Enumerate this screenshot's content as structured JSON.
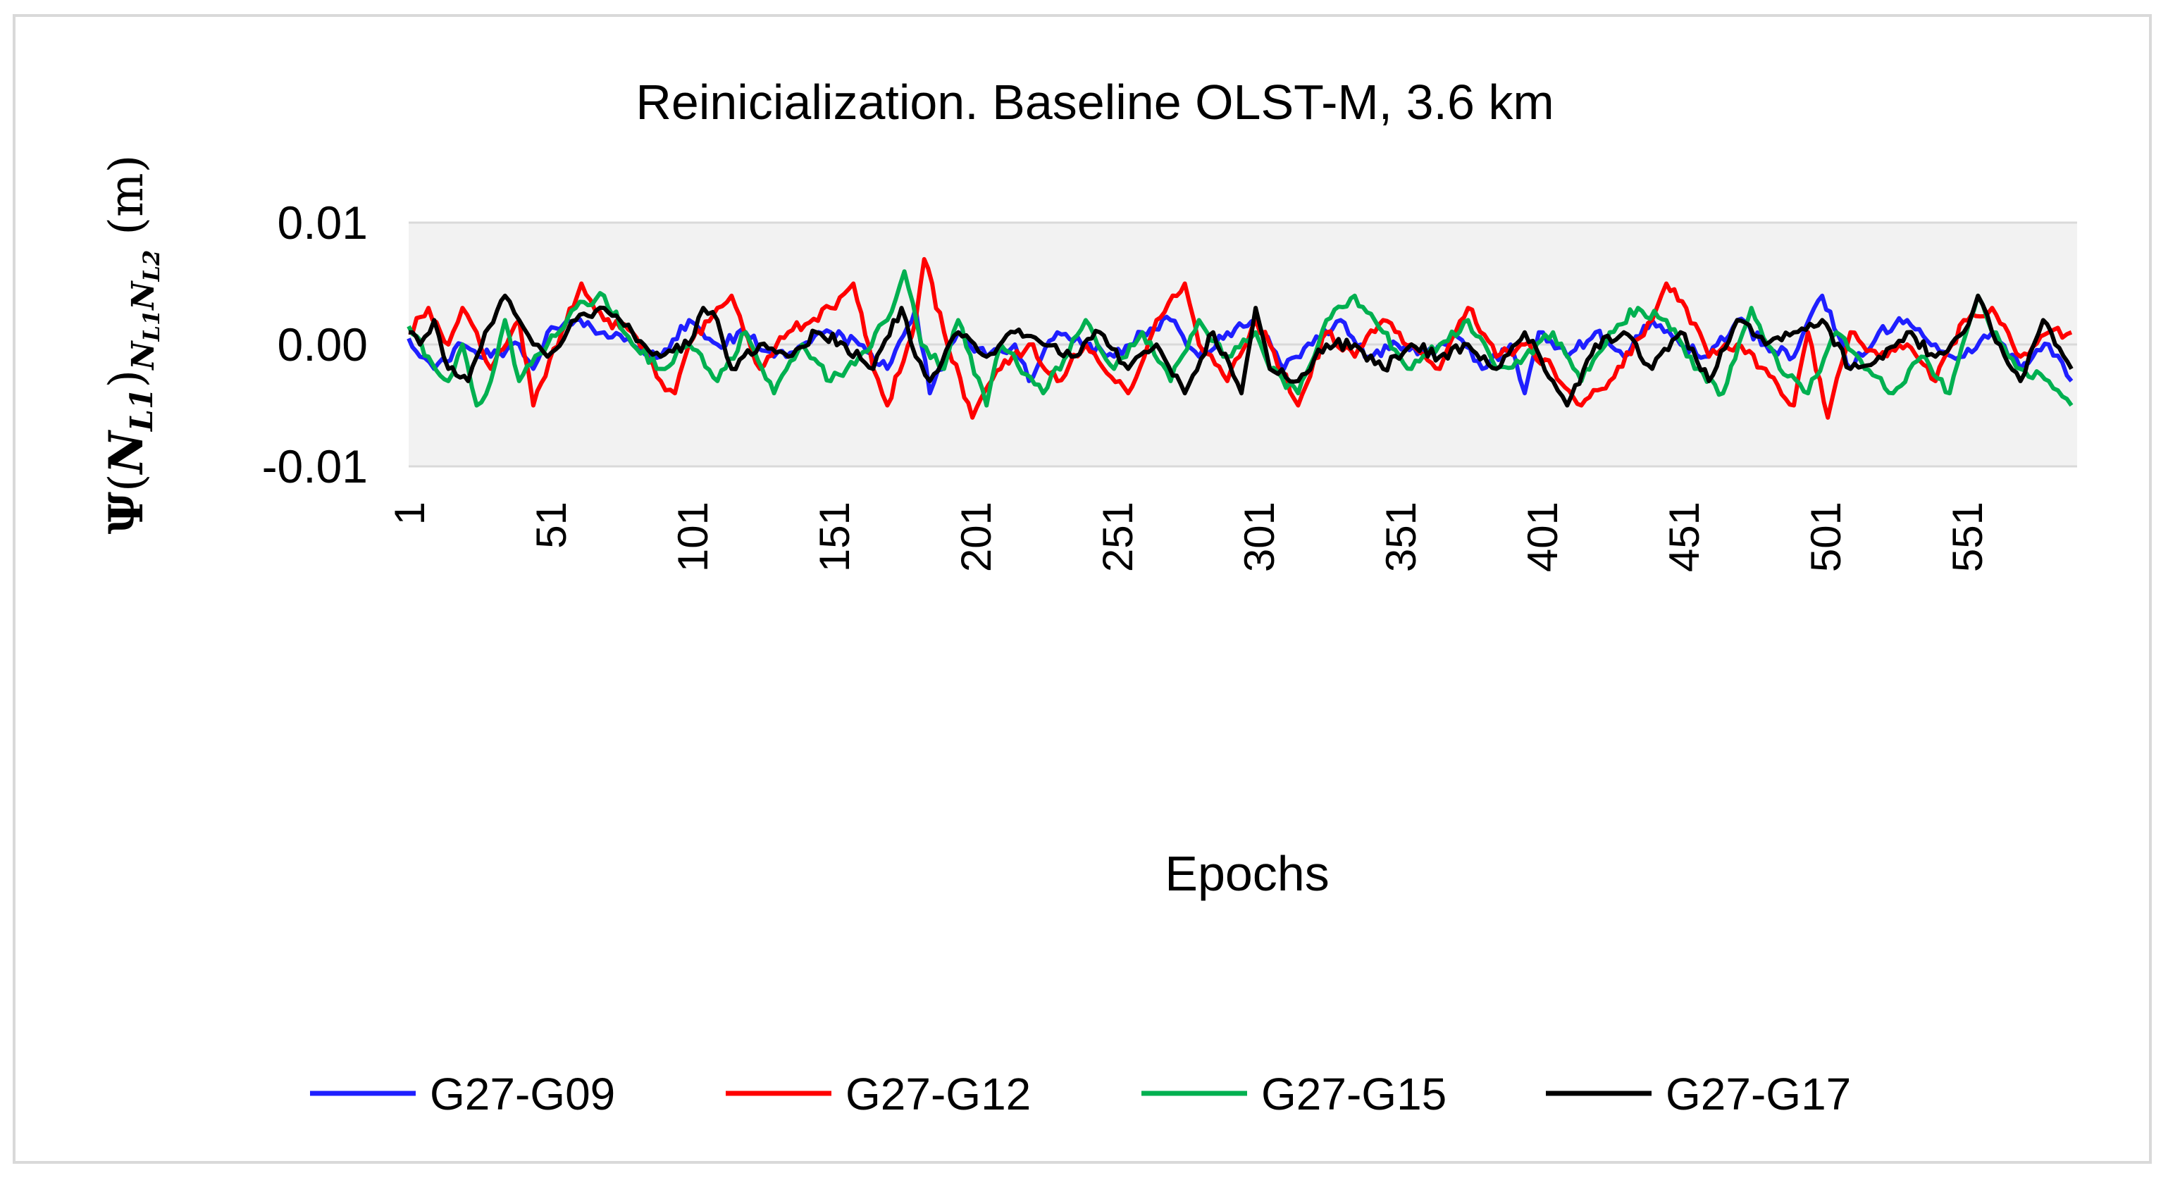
{
  "chart_data": {
    "type": "line",
    "title": "Reinicialization. Baseline OLST-M, 3.6 km",
    "xlabel": "Epochs",
    "ylabel": {
      "symbol": "Ψ",
      "main": "N",
      "main_sub": "L1",
      "outer_sub": "N",
      "outer_sub_sub1": "L1",
      "outer_sub_mid": "N",
      "outer_sub_sub2": "L2",
      "unit": "(m)"
    },
    "ylim": [
      -0.01,
      0.01
    ],
    "yticks": [
      {
        "value": 0.01,
        "label": "0.01"
      },
      {
        "value": 0.0,
        "label": "0.00"
      },
      {
        "value": -0.01,
        "label": "-0.01"
      }
    ],
    "xlim": [
      1,
      590
    ],
    "xticks": [
      "1",
      "51",
      "101",
      "151",
      "201",
      "251",
      "301",
      "351",
      "401",
      "451",
      "501",
      "551"
    ],
    "grid": "horizontal",
    "plot_background": "#f2f2f2",
    "legend_position": "bottom",
    "series": [
      {
        "name": "G27-G09",
        "color": "#1f1fff",
        "keypoints": [
          [
            1,
            0.0005
          ],
          [
            5,
            -0.001
          ],
          [
            10,
            -0.002
          ],
          [
            20,
            0.0
          ],
          [
            30,
            -0.001
          ],
          [
            40,
            0.0
          ],
          [
            45,
            -0.002
          ],
          [
            50,
            0.001
          ],
          [
            60,
            0.002
          ],
          [
            70,
            0.001
          ],
          [
            80,
            0.0
          ],
          [
            90,
            -0.001
          ],
          [
            100,
            0.002
          ],
          [
            110,
            0.0
          ],
          [
            120,
            0.001
          ],
          [
            130,
            -0.001
          ],
          [
            140,
            0.0
          ],
          [
            150,
            0.001
          ],
          [
            160,
            0.0
          ],
          [
            170,
            -0.002
          ],
          [
            180,
            0.003
          ],
          [
            185,
            -0.004
          ],
          [
            195,
            0.001
          ],
          [
            205,
            -0.001
          ],
          [
            215,
            0.0
          ],
          [
            220,
            -0.003
          ],
          [
            230,
            0.001
          ],
          [
            240,
            0.0
          ],
          [
            250,
            -0.001
          ],
          [
            260,
            0.001
          ],
          [
            270,
            0.002
          ],
          [
            280,
            -0.001
          ],
          [
            290,
            0.001
          ],
          [
            300,
            0.002
          ],
          [
            310,
            -0.002
          ],
          [
            320,
            0.0
          ],
          [
            330,
            0.002
          ],
          [
            340,
            -0.001
          ],
          [
            350,
            0.0
          ],
          [
            360,
            -0.001
          ],
          [
            370,
            0.001
          ],
          [
            380,
            -0.002
          ],
          [
            390,
            0.0
          ],
          [
            395,
            -0.004
          ],
          [
            400,
            0.001
          ],
          [
            410,
            -0.001
          ],
          [
            420,
            0.001
          ],
          [
            430,
            -0.001
          ],
          [
            440,
            0.002
          ],
          [
            450,
            0.0
          ],
          [
            460,
            -0.001
          ],
          [
            470,
            0.002
          ],
          [
            480,
            0.0
          ],
          [
            490,
            -0.001
          ],
          [
            500,
            0.004
          ],
          [
            510,
            -0.002
          ],
          [
            520,
            0.001
          ],
          [
            530,
            0.002
          ],
          [
            540,
            0.0
          ],
          [
            550,
            -0.001
          ],
          [
            560,
            0.001
          ],
          [
            570,
            -0.002
          ],
          [
            580,
            0.0
          ],
          [
            588,
            -0.003
          ]
        ]
      },
      {
        "name": "G27-G12",
        "color": "#ff0000",
        "keypoints": [
          [
            1,
            0.001
          ],
          [
            8,
            0.003
          ],
          [
            15,
            0.0
          ],
          [
            20,
            0.003
          ],
          [
            25,
            0.001
          ],
          [
            30,
            -0.002
          ],
          [
            40,
            0.002
          ],
          [
            45,
            -0.005
          ],
          [
            55,
            0.001
          ],
          [
            62,
            0.005
          ],
          [
            70,
            0.002
          ],
          [
            80,
            0.001
          ],
          [
            90,
            -0.003
          ],
          [
            95,
            -0.004
          ],
          [
            100,
            0.0
          ],
          [
            110,
            0.003
          ],
          [
            115,
            0.004
          ],
          [
            125,
            -0.002
          ],
          [
            135,
            0.001
          ],
          [
            150,
            0.003
          ],
          [
            158,
            0.005
          ],
          [
            165,
            -0.002
          ],
          [
            170,
            -0.005
          ],
          [
            180,
            0.002
          ],
          [
            183,
            0.007
          ],
          [
            190,
            0.001
          ],
          [
            200,
            -0.006
          ],
          [
            210,
            -0.002
          ],
          [
            220,
            0.0
          ],
          [
            230,
            -0.003
          ],
          [
            240,
            0.0
          ],
          [
            255,
            -0.004
          ],
          [
            265,
            0.002
          ],
          [
            275,
            0.005
          ],
          [
            280,
            0.0
          ],
          [
            290,
            -0.003
          ],
          [
            300,
            0.002
          ],
          [
            305,
            0.0
          ],
          [
            315,
            -0.005
          ],
          [
            325,
            0.001
          ],
          [
            335,
            -0.001
          ],
          [
            345,
            0.002
          ],
          [
            355,
            0.0
          ],
          [
            365,
            -0.002
          ],
          [
            375,
            0.003
          ],
          [
            385,
            -0.001
          ],
          [
            395,
            0.0
          ],
          [
            405,
            -0.002
          ],
          [
            415,
            -0.005
          ],
          [
            425,
            -0.003
          ],
          [
            440,
            0.002
          ],
          [
            445,
            0.005
          ],
          [
            452,
            0.003
          ],
          [
            460,
            -0.001
          ],
          [
            470,
            0.0
          ],
          [
            480,
            -0.002
          ],
          [
            490,
            -0.005
          ],
          [
            495,
            0.001
          ],
          [
            502,
            -0.006
          ],
          [
            510,
            0.001
          ],
          [
            520,
            -0.001
          ],
          [
            530,
            0.0
          ],
          [
            540,
            -0.003
          ],
          [
            550,
            0.002
          ],
          [
            560,
            0.003
          ],
          [
            570,
            -0.001
          ],
          [
            580,
            0.001
          ],
          [
            588,
            0.001
          ]
        ]
      },
      {
        "name": "G27-G15",
        "color": "#00b050",
        "keypoints": [
          [
            1,
            0.0015
          ],
          [
            8,
            -0.001
          ],
          [
            15,
            -0.003
          ],
          [
            20,
            0.0
          ],
          [
            25,
            -0.005
          ],
          [
            30,
            -0.003
          ],
          [
            35,
            0.002
          ],
          [
            40,
            -0.003
          ],
          [
            50,
            0.0
          ],
          [
            60,
            0.003
          ],
          [
            70,
            0.004
          ],
          [
            80,
            0.0
          ],
          [
            90,
            -0.002
          ],
          [
            100,
            0.0
          ],
          [
            110,
            -0.003
          ],
          [
            120,
            0.001
          ],
          [
            130,
            -0.004
          ],
          [
            140,
            0.0
          ],
          [
            150,
            -0.003
          ],
          [
            160,
            -0.001
          ],
          [
            170,
            0.002
          ],
          [
            176,
            0.006
          ],
          [
            182,
            0.0
          ],
          [
            190,
            -0.002
          ],
          [
            195,
            0.002
          ],
          [
            205,
            -0.005
          ],
          [
            210,
            0.0
          ],
          [
            225,
            -0.004
          ],
          [
            240,
            0.002
          ],
          [
            250,
            -0.002
          ],
          [
            260,
            0.001
          ],
          [
            270,
            -0.003
          ],
          [
            280,
            0.002
          ],
          [
            290,
            -0.001
          ],
          [
            300,
            0.001
          ],
          [
            305,
            -0.002
          ],
          [
            315,
            -0.004
          ],
          [
            325,
            0.002
          ],
          [
            335,
            0.004
          ],
          [
            345,
            0.001
          ],
          [
            355,
            -0.002
          ],
          [
            365,
            0.0
          ],
          [
            375,
            0.002
          ],
          [
            385,
            -0.002
          ],
          [
            395,
            -0.001
          ],
          [
            405,
            0.001
          ],
          [
            415,
            -0.003
          ],
          [
            425,
            0.001
          ],
          [
            435,
            0.003
          ],
          [
            445,
            0.002
          ],
          [
            455,
            -0.002
          ],
          [
            465,
            -0.004
          ],
          [
            475,
            0.003
          ],
          [
            485,
            -0.002
          ],
          [
            495,
            -0.004
          ],
          [
            505,
            0.001
          ],
          [
            515,
            -0.002
          ],
          [
            525,
            -0.004
          ],
          [
            535,
            -0.001
          ],
          [
            545,
            -0.004
          ],
          [
            555,
            0.004
          ],
          [
            560,
            0.001
          ],
          [
            570,
            -0.002
          ],
          [
            580,
            -0.003
          ],
          [
            588,
            -0.005
          ]
        ]
      },
      {
        "name": "G27-G17",
        "color": "#000000",
        "keypoints": [
          [
            1,
            0.001
          ],
          [
            5,
            0.0
          ],
          [
            10,
            0.002
          ],
          [
            15,
            -0.002
          ],
          [
            22,
            -0.003
          ],
          [
            28,
            0.001
          ],
          [
            35,
            0.004
          ],
          [
            40,
            0.002
          ],
          [
            45,
            0.0
          ],
          [
            50,
            -0.001
          ],
          [
            60,
            0.002
          ],
          [
            70,
            0.003
          ],
          [
            80,
            0.001
          ],
          [
            90,
            -0.001
          ],
          [
            100,
            0.0
          ],
          [
            105,
            0.003
          ],
          [
            110,
            0.002
          ],
          [
            115,
            -0.002
          ],
          [
            125,
            0.0
          ],
          [
            135,
            -0.001
          ],
          [
            145,
            0.001
          ],
          [
            155,
            0.0
          ],
          [
            165,
            -0.002
          ],
          [
            175,
            0.003
          ],
          [
            180,
            -0.001
          ],
          [
            185,
            -0.003
          ],
          [
            195,
            0.001
          ],
          [
            205,
            -0.001
          ],
          [
            215,
            0.001
          ],
          [
            225,
            0.0
          ],
          [
            235,
            -0.001
          ],
          [
            245,
            0.001
          ],
          [
            255,
            -0.002
          ],
          [
            265,
            0.0
          ],
          [
            275,
            -0.004
          ],
          [
            285,
            0.001
          ],
          [
            295,
            -0.004
          ],
          [
            300,
            0.003
          ],
          [
            305,
            -0.002
          ],
          [
            315,
            -0.003
          ],
          [
            325,
            0.0
          ],
          [
            335,
            0.0
          ],
          [
            345,
            -0.002
          ],
          [
            355,
            0.0
          ],
          [
            365,
            -0.001
          ],
          [
            375,
            0.0
          ],
          [
            385,
            -0.002
          ],
          [
            395,
            0.001
          ],
          [
            405,
            -0.003
          ],
          [
            410,
            -0.005
          ],
          [
            420,
            0.0
          ],
          [
            430,
            0.001
          ],
          [
            440,
            -0.002
          ],
          [
            450,
            0.001
          ],
          [
            460,
            -0.003
          ],
          [
            470,
            0.002
          ],
          [
            480,
            0.0
          ],
          [
            490,
            0.001
          ],
          [
            500,
            0.002
          ],
          [
            510,
            -0.002
          ],
          [
            520,
            -0.001
          ],
          [
            530,
            0.001
          ],
          [
            540,
            -0.001
          ],
          [
            550,
            0.001
          ],
          [
            555,
            0.004
          ],
          [
            560,
            0.001
          ],
          [
            570,
            -0.003
          ],
          [
            578,
            0.002
          ],
          [
            588,
            -0.002
          ]
        ]
      }
    ]
  }
}
